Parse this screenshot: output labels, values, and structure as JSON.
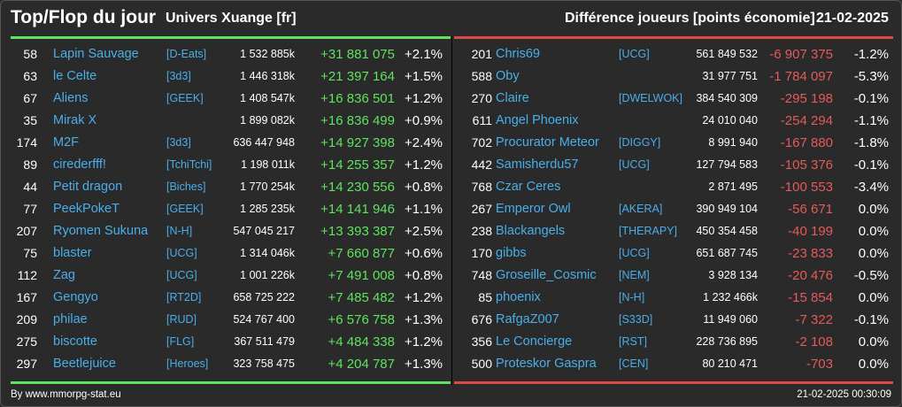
{
  "header": {
    "title": "Top/Flop du jour",
    "subtitle": "Univers Xuange [fr]",
    "diff_label": "Différence joueurs [points économie]",
    "date": "21-02-2025"
  },
  "colors": {
    "gain": "#5fe35f",
    "loss": "#e35b5b",
    "link": "#4aaeea",
    "bg": "#2a2a2a"
  },
  "top": [
    {
      "rank": "58",
      "name": "Lapin Sauvage",
      "guild": "[D-Eats]",
      "points": "1 532 885k",
      "diff": "+31 881 075",
      "pct": "+2.1%"
    },
    {
      "rank": "63",
      "name": "le Celte",
      "guild": "[3d3]",
      "points": "1 446 318k",
      "diff": "+21 397 164",
      "pct": "+1.5%"
    },
    {
      "rank": "67",
      "name": "Aliens",
      "guild": "[GEEK]",
      "points": "1 408 547k",
      "diff": "+16 836 501",
      "pct": "+1.2%"
    },
    {
      "rank": "35",
      "name": "Mirak X",
      "guild": "",
      "points": "1 899 082k",
      "diff": "+16 836 499",
      "pct": "+0.9%"
    },
    {
      "rank": "174",
      "name": "M2F",
      "guild": "[3d3]",
      "points": "636 447 948",
      "diff": "+14 927 398",
      "pct": "+2.4%"
    },
    {
      "rank": "89",
      "name": "cirederfff!",
      "guild": "[TchiTchi]",
      "points": "1 198 011k",
      "diff": "+14 255 357",
      "pct": "+1.2%"
    },
    {
      "rank": "44",
      "name": "Petit dragon",
      "guild": "[Biches]",
      "points": "1 770 254k",
      "diff": "+14 230 556",
      "pct": "+0.8%"
    },
    {
      "rank": "77",
      "name": "PeekPokeT",
      "guild": "[GEEK]",
      "points": "1 285 235k",
      "diff": "+14 141 946",
      "pct": "+1.1%"
    },
    {
      "rank": "207",
      "name": "Ryomen Sukuna",
      "guild": "[N-H]",
      "points": "547 045 217",
      "diff": "+13 393 387",
      "pct": "+2.5%"
    },
    {
      "rank": "75",
      "name": "blaster",
      "guild": "[UCG]",
      "points": "1 314 046k",
      "diff": "+7 660 877",
      "pct": "+0.6%"
    },
    {
      "rank": "112",
      "name": "Zag",
      "guild": "[UCG]",
      "points": "1 001 226k",
      "diff": "+7 491 008",
      "pct": "+0.8%"
    },
    {
      "rank": "167",
      "name": "Gengyo",
      "guild": "[RT2D]",
      "points": "658 725 222",
      "diff": "+7 485 482",
      "pct": "+1.2%"
    },
    {
      "rank": "209",
      "name": "philae",
      "guild": "[RUD]",
      "points": "524 767 400",
      "diff": "+6 576 758",
      "pct": "+1.3%"
    },
    {
      "rank": "275",
      "name": "biscotte",
      "guild": "[FLG]",
      "points": "367 511 479",
      "diff": "+4 484 338",
      "pct": "+1.2%"
    },
    {
      "rank": "297",
      "name": "Beetlejuice",
      "guild": "[Heroes]",
      "points": "323 758 475",
      "diff": "+4 204 787",
      "pct": "+1.3%"
    }
  ],
  "flop": [
    {
      "rank": "201",
      "name": "Chris69",
      "guild": "[UCG]",
      "points": "561 849 532",
      "diff": "-6 907 375",
      "pct": "-1.2%"
    },
    {
      "rank": "588",
      "name": "Oby",
      "guild": "",
      "points": "31 977 751",
      "diff": "-1 784 097",
      "pct": "-5.3%"
    },
    {
      "rank": "270",
      "name": "Claire",
      "guild": "[DWELWOK]",
      "points": "384 540 309",
      "diff": "-295 198",
      "pct": "-0.1%"
    },
    {
      "rank": "611",
      "name": "Angel Phoenix",
      "guild": "",
      "points": "24 010 040",
      "diff": "-254 294",
      "pct": "-1.1%"
    },
    {
      "rank": "702",
      "name": "Procurator Meteor",
      "guild": "[DIGGY]",
      "points": "8 991 940",
      "diff": "-167 880",
      "pct": "-1.8%"
    },
    {
      "rank": "442",
      "name": "Samisherdu57",
      "guild": "[UCG]",
      "points": "127 794 583",
      "diff": "-105 376",
      "pct": "-0.1%"
    },
    {
      "rank": "768",
      "name": "Czar Ceres",
      "guild": "",
      "points": "2 871 495",
      "diff": "-100 553",
      "pct": "-3.4%"
    },
    {
      "rank": "267",
      "name": "Emperor Owl",
      "guild": "[AKERA]",
      "points": "390 949 104",
      "diff": "-56 671",
      "pct": "0.0%"
    },
    {
      "rank": "238",
      "name": "Blackangels",
      "guild": "[THERAPY]",
      "points": "450 354 458",
      "diff": "-40 199",
      "pct": "0.0%"
    },
    {
      "rank": "170",
      "name": "gibbs",
      "guild": "[UCG]",
      "points": "651 687 745",
      "diff": "-23 833",
      "pct": "0.0%"
    },
    {
      "rank": "748",
      "name": "Groseille_Cosmic",
      "guild": "[NEM]",
      "points": "3 928 134",
      "diff": "-20 476",
      "pct": "-0.5%"
    },
    {
      "rank": "85",
      "name": "phoenix",
      "guild": "[N-H]",
      "points": "1 232 466k",
      "diff": "-15 854",
      "pct": "0.0%"
    },
    {
      "rank": "676",
      "name": "RafgaZ007",
      "guild": "[S33D]",
      "points": "11 949 060",
      "diff": "-7 322",
      "pct": "-0.1%"
    },
    {
      "rank": "356",
      "name": "Le Concierge",
      "guild": "[RST]",
      "points": "228 736 895",
      "diff": "-2 108",
      "pct": "0.0%"
    },
    {
      "rank": "500",
      "name": "Proteskor Gaspra",
      "guild": "[CEN]",
      "points": "80 210 471",
      "diff": "-703",
      "pct": "0.0%"
    }
  ],
  "footer": {
    "credit": "By www.mmorpg-stat.eu",
    "timestamp": "21-02-2025 00:30:09"
  }
}
